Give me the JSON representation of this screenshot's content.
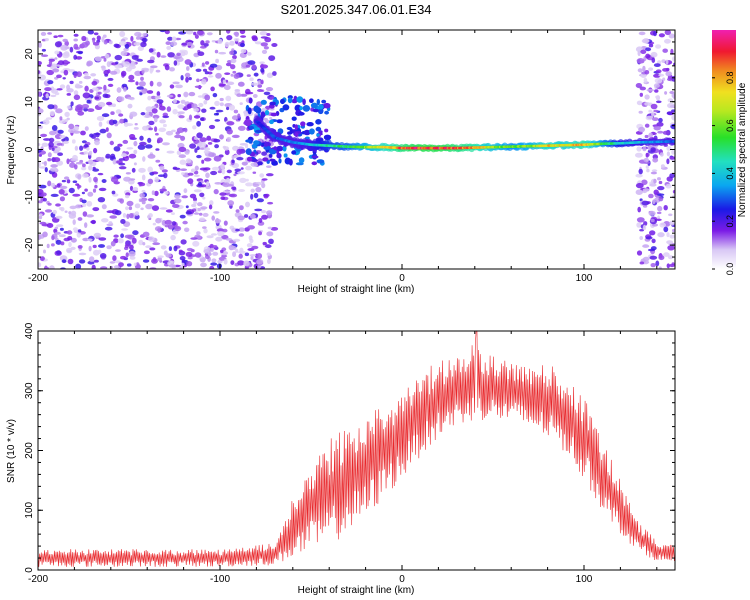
{
  "title": "S201.2025.347.06.01.E34",
  "chart_data": [
    {
      "type": "heatmap",
      "title": "S201.2025.347.06.01.E34",
      "xlabel": "Height of straight line (km)",
      "ylabel": "Frequency (Hz)",
      "xlim": [
        -200,
        150
      ],
      "ylim": [
        -25,
        25
      ],
      "xticks": [
        -200,
        -100,
        0,
        100
      ],
      "yticks": [
        -20,
        -10,
        0,
        10,
        20
      ],
      "colorbar": {
        "label": "Normalized spectral amplitude",
        "range": [
          0,
          1
        ],
        "ticks": [
          0.0,
          0.2,
          0.4,
          0.6,
          0.8
        ]
      },
      "noise_regions_km": [
        [
          -200,
          -70
        ],
        [
          130,
          150
        ]
      ],
      "ridge": {
        "x": [
          -80,
          -70,
          -60,
          -50,
          -40,
          -30,
          -20,
          -10,
          0,
          10,
          20,
          30,
          40,
          50,
          60,
          70,
          80,
          90,
          100,
          110,
          120,
          130,
          140,
          150
        ],
        "freq": [
          6,
          2.5,
          1.5,
          1,
          0.8,
          0.6,
          0.5,
          0.5,
          0.3,
          0.3,
          0.3,
          0.3,
          0.4,
          0.5,
          0.6,
          0.7,
          0.8,
          0.9,
          1.0,
          1.2,
          1.3,
          1.5,
          1.6,
          1.7
        ],
        "amplitude": [
          0.25,
          0.3,
          0.35,
          0.4,
          0.5,
          0.55,
          0.65,
          0.8,
          0.9,
          0.95,
          0.95,
          0.9,
          0.85,
          0.7,
          0.6,
          0.65,
          0.8,
          0.75,
          0.85,
          0.6,
          0.45,
          0.4,
          0.35,
          0.3
        ]
      }
    },
    {
      "type": "line",
      "xlabel": "Height of straight line (km)",
      "ylabel": "SNR (10 * v/v)",
      "xlim": [
        -200,
        150
      ],
      "ylim": [
        0,
        400
      ],
      "xticks": [
        -200,
        -100,
        0,
        100
      ],
      "yticks": [
        0,
        100,
        200,
        300,
        400
      ],
      "series": [
        {
          "name": "SNR",
          "color": "#e8262a",
          "envelope_x": [
            -200,
            -150,
            -100,
            -70,
            -60,
            -50,
            -40,
            -30,
            -20,
            -10,
            0,
            10,
            20,
            30,
            40,
            50,
            60,
            70,
            80,
            90,
            100,
            110,
            120,
            130,
            140,
            150
          ],
          "envelope_low": [
            5,
            5,
            5,
            8,
            20,
            30,
            40,
            60,
            80,
            120,
            150,
            190,
            220,
            240,
            250,
            250,
            245,
            235,
            220,
            195,
            150,
            100,
            60,
            30,
            15,
            10
          ],
          "envelope_high": [
            35,
            35,
            35,
            45,
            120,
            180,
            220,
            250,
            265,
            280,
            300,
            330,
            350,
            360,
            380,
            360,
            355,
            350,
            345,
            330,
            290,
            220,
            150,
            80,
            50,
            40
          ],
          "peak": {
            "x": 41,
            "y": 400
          }
        }
      ]
    }
  ]
}
